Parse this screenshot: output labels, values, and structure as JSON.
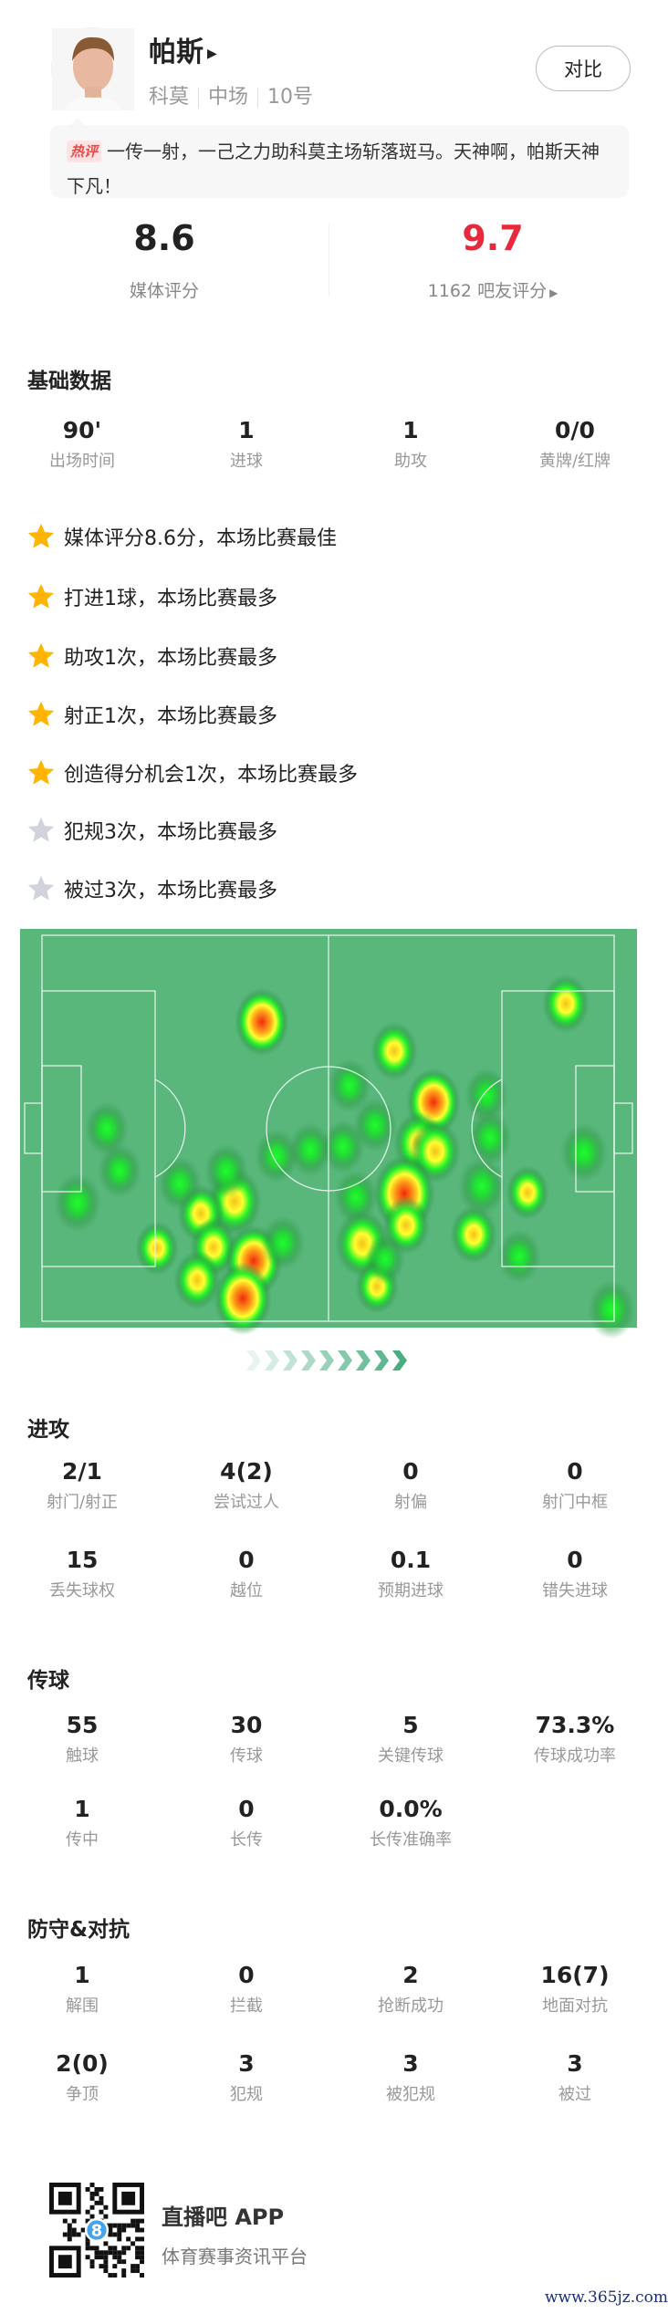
{
  "player": {
    "name": "帕斯",
    "team": "科莫",
    "position": "中场",
    "number": "10号",
    "compare_label": "对比"
  },
  "comment": {
    "badge": "热评",
    "text": "一传一射，一己之力助科莫主场斩落斑马。天神啊，帕斯天神下凡！"
  },
  "ratings": {
    "media": {
      "value": "8.6",
      "label": "媒体评分"
    },
    "fans": {
      "value": "9.7",
      "label": "1162 吧友评分",
      "color": "#e8283c"
    }
  },
  "basic": {
    "title": "基础数据",
    "items": [
      {
        "value": "90'",
        "label": "出场时间"
      },
      {
        "value": "1",
        "label": "进球"
      },
      {
        "value": "1",
        "label": "助攻"
      },
      {
        "value": "0/0",
        "label": "黄牌/红牌"
      }
    ]
  },
  "highlights": [
    {
      "text": "媒体评分8.6分，本场比赛最佳",
      "star": "gold"
    },
    {
      "text": "打进1球，本场比赛最多",
      "star": "gold"
    },
    {
      "text": "助攻1次，本场比赛最多",
      "star": "gold"
    },
    {
      "text": "射正1次，本场比赛最多",
      "star": "gold"
    },
    {
      "text": "创造得分机会1次，本场比赛最多",
      "star": "gold"
    },
    {
      "text": "犯规3次，本场比赛最多",
      "star": "gray"
    },
    {
      "text": "被过3次，本场比赛最多",
      "star": "gray"
    }
  ],
  "colors": {
    "star_gold": "#ffb400",
    "star_gray": "#d0d3da",
    "pitch": "#59b77c",
    "accent_red": "#e8283c"
  },
  "attack": {
    "title": "进攻",
    "items": [
      {
        "value": "2/1",
        "label": "射门/射正"
      },
      {
        "value": "4(2)",
        "label": "尝试过人"
      },
      {
        "value": "0",
        "label": "射偏"
      },
      {
        "value": "0",
        "label": "射门中框"
      },
      {
        "value": "15",
        "label": "丢失球权"
      },
      {
        "value": "0",
        "label": "越位"
      },
      {
        "value": "0.1",
        "label": "预期进球"
      },
      {
        "value": "0",
        "label": "错失进球"
      }
    ]
  },
  "passing": {
    "title": "传球",
    "items": [
      {
        "value": "55",
        "label": "触球"
      },
      {
        "value": "30",
        "label": "传球"
      },
      {
        "value": "5",
        "label": "关键传球"
      },
      {
        "value": "73.3%",
        "label": "传球成功率"
      },
      {
        "value": "1",
        "label": "传中"
      },
      {
        "value": "0",
        "label": "长传"
      },
      {
        "value": "0.0%",
        "label": "长传准确率"
      }
    ]
  },
  "defense": {
    "title": "防守&对抗",
    "items": [
      {
        "value": "1",
        "label": "解围"
      },
      {
        "value": "0",
        "label": "拦截"
      },
      {
        "value": "2",
        "label": "抢断成功"
      },
      {
        "value": "16(7)",
        "label": "地面对抗"
      },
      {
        "value": "2(0)",
        "label": "争顶"
      },
      {
        "value": "3",
        "label": "犯规"
      },
      {
        "value": "3",
        "label": "被犯规"
      },
      {
        "value": "3",
        "label": "被过"
      }
    ]
  },
  "footer": {
    "app_name": "直播吧 APP",
    "app_desc": "体育赛事资讯平台",
    "watermark": "www.365jz.com"
  }
}
